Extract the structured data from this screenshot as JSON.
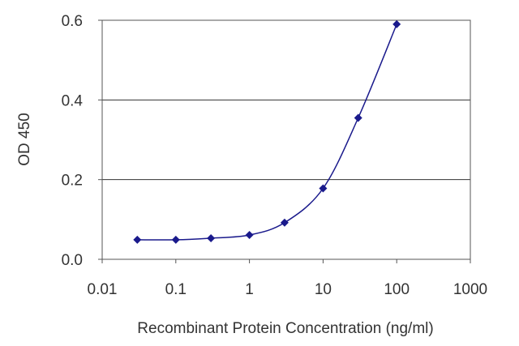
{
  "chart_data": {
    "type": "line",
    "xlabel": "Recombinant Protein Concentration (ng/ml)",
    "ylabel": "OD 450",
    "x_scale": "log",
    "xlim": [
      0.01,
      1000
    ],
    "ylim": [
      0.0,
      0.6
    ],
    "x_ticks": [
      0.01,
      0.1,
      1,
      10,
      100,
      1000
    ],
    "x_tick_labels": [
      "0.01",
      "0.1",
      "1",
      "10",
      "100",
      "1000"
    ],
    "y_ticks": [
      0.0,
      0.2,
      0.4,
      0.6
    ],
    "y_tick_labels": [
      "0.0",
      "0.2",
      "0.4",
      "0.6"
    ],
    "gridlines": "horizontal",
    "series": [
      {
        "color": "#1a1a8c",
        "marker": "diamond",
        "x": [
          0.03,
          0.1,
          0.3,
          1,
          3,
          10,
          30,
          100
        ],
        "y": [
          0.049,
          0.049,
          0.053,
          0.061,
          0.092,
          0.178,
          0.355,
          0.59
        ]
      }
    ]
  }
}
